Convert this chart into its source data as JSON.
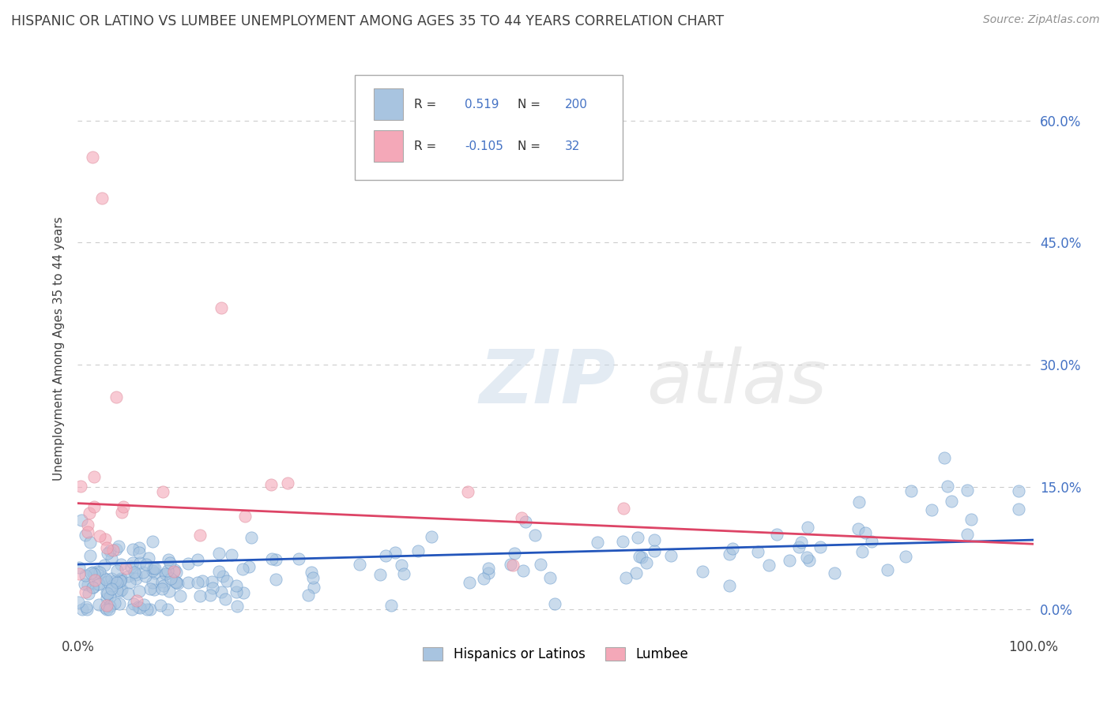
{
  "title": "HISPANIC OR LATINO VS LUMBEE UNEMPLOYMENT AMONG AGES 35 TO 44 YEARS CORRELATION CHART",
  "source": "Source: ZipAtlas.com",
  "ylabel": "Unemployment Among Ages 35 to 44 years",
  "ytick_vals": [
    0,
    15,
    30,
    45,
    60
  ],
  "xlim": [
    0,
    100
  ],
  "ylim": [
    -3,
    67
  ],
  "blue_R": 0.519,
  "blue_N": 200,
  "pink_R": -0.105,
  "pink_N": 32,
  "blue_color": "#a8c4e0",
  "blue_edge_color": "#6699cc",
  "pink_color": "#f4a8b8",
  "pink_edge_color": "#dd8899",
  "blue_line_color": "#2255bb",
  "pink_line_color": "#dd4466",
  "legend_label_blue": "Hispanics or Latinos",
  "legend_label_pink": "Lumbee",
  "watermark_zip": "ZIP",
  "watermark_atlas": "atlas",
  "background_color": "#ffffff",
  "grid_color": "#cccccc",
  "title_color": "#404040",
  "source_color": "#909090",
  "axis_text_color": "#4472c4",
  "legend_R_color": "#333333",
  "legend_val_color": "#4472c4"
}
